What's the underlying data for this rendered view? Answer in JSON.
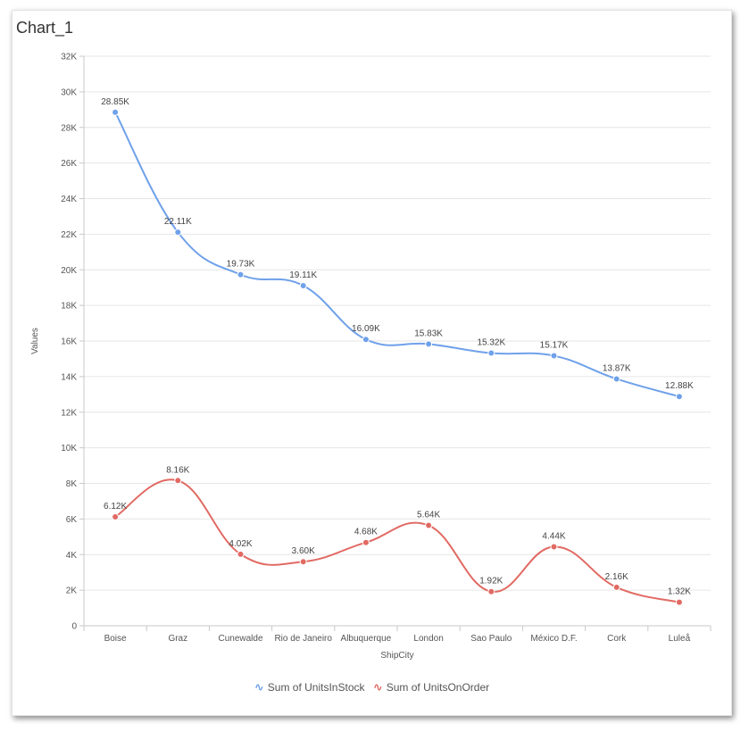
{
  "chart_title": "Chart_1",
  "chart_data": {
    "type": "line",
    "title": "Chart_1",
    "xlabel": "ShipCity",
    "ylabel": "Values",
    "ylim": [
      0,
      32000
    ],
    "y_ticks": [
      "0",
      "2K",
      "4K",
      "6K",
      "8K",
      "10K",
      "12K",
      "14K",
      "16K",
      "18K",
      "20K",
      "22K",
      "24K",
      "26K",
      "28K",
      "30K",
      "32K"
    ],
    "categories": [
      "Boise",
      "Graz",
      "Cunewalde",
      "Rio de Janeiro",
      "Albuquerque",
      "London",
      "Sao Paulo",
      "México D.F.",
      "Cork",
      "Luleå"
    ],
    "grid": true,
    "legend_position": "bottom",
    "series": [
      {
        "name": "Sum of UnitsInStock",
        "color": "#6fa1ea",
        "values": [
          28850,
          22110,
          19730,
          19110,
          16090,
          15830,
          15320,
          15170,
          13870,
          12880
        ],
        "labels": [
          "28.85K",
          "22.11K",
          "19.73K",
          "19.11K",
          "16.09K",
          "15.83K",
          "15.32K",
          "15.17K",
          "13.87K",
          "12.88K"
        ]
      },
      {
        "name": "Sum of UnitsOnOrder",
        "color": "#e16a63",
        "values": [
          6120,
          8160,
          4020,
          3600,
          4680,
          5640,
          1920,
          4440,
          2160,
          1320
        ],
        "labels": [
          "6.12K",
          "8.16K",
          "4.02K",
          "3.60K",
          "4.68K",
          "5.64K",
          "1.92K",
          "4.44K",
          "2.16K",
          "1.32K"
        ]
      }
    ]
  }
}
